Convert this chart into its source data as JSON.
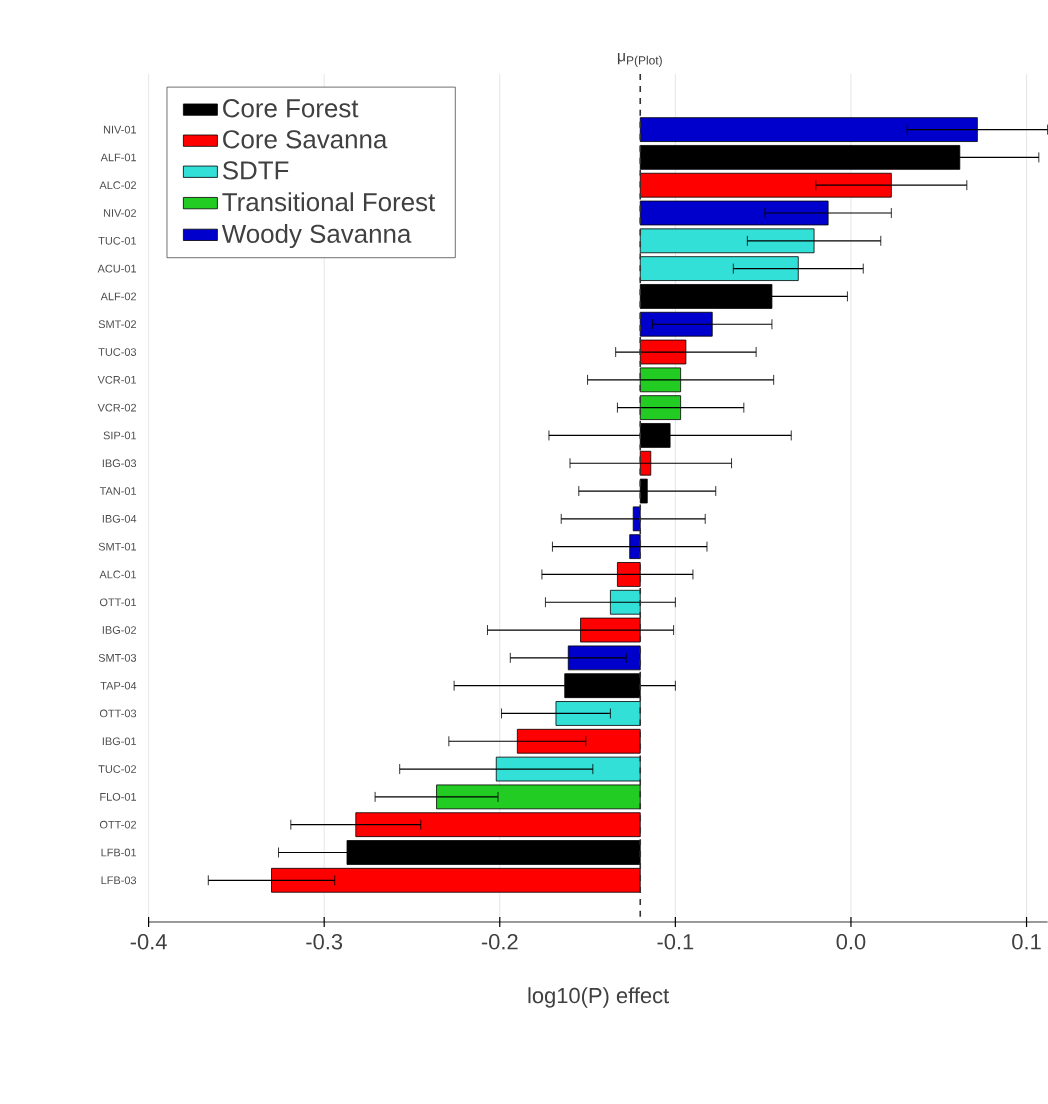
{
  "chart_data": {
    "type": "bar",
    "orientation": "horizontal",
    "xlabel": "log10(P) effect",
    "categories": [
      "NIV-01",
      "ALF-01",
      "ALC-02",
      "NIV-02",
      "TUC-01",
      "ACU-01",
      "ALF-02",
      "SMT-02",
      "TUC-03",
      "VCR-01",
      "VCR-02",
      "SIP-01",
      "IBG-03",
      "TAN-01",
      "IBG-04",
      "SMT-01",
      "ALC-01",
      "OTT-01",
      "IBG-02",
      "SMT-03",
      "TAP-04",
      "OTT-03",
      "IBG-01",
      "TUC-02",
      "FLO-01",
      "OTT-02",
      "LFB-01",
      "LFB-03"
    ],
    "series": [
      {
        "name": "Core Forest",
        "color": "#000000",
        "values": [
          null,
          0.182,
          null,
          null,
          null,
          null,
          0.075,
          null,
          null,
          null,
          null,
          0.017,
          null,
          0.004,
          null,
          null,
          null,
          null,
          null,
          null,
          -0.043,
          null,
          null,
          null,
          null,
          null,
          -0.167,
          null
        ],
        "base": [
          null,
          -0.12,
          null,
          null,
          null,
          null,
          -0.12,
          null,
          null,
          null,
          null,
          -0.12,
          null,
          -0.12,
          null,
          null,
          null,
          null,
          null,
          null,
          -0.12,
          null,
          null,
          null,
          null,
          null,
          -0.12,
          null
        ],
        "errors": [
          null,
          0.045,
          null,
          null,
          null,
          null,
          0.043,
          null,
          null,
          null,
          null,
          0.069,
          null,
          0.039,
          null,
          null,
          null,
          null,
          null,
          null,
          0.063,
          null,
          null,
          null,
          null,
          null,
          0.039,
          null
        ]
      },
      {
        "name": "Core Savanna",
        "color": "#ff0000",
        "values": [
          null,
          null,
          0.143,
          null,
          null,
          null,
          null,
          null,
          0.026,
          null,
          null,
          null,
          0.006,
          null,
          null,
          null,
          -0.013,
          null,
          -0.034,
          null,
          null,
          null,
          -0.07,
          null,
          null,
          -0.162,
          null,
          -0.21
        ],
        "base": [
          null,
          null,
          -0.12,
          null,
          null,
          null,
          null,
          null,
          -0.12,
          null,
          null,
          null,
          -0.12,
          null,
          null,
          null,
          -0.12,
          null,
          -0.12,
          null,
          null,
          null,
          -0.12,
          null,
          null,
          -0.12,
          null,
          -0.12
        ],
        "errors": [
          null,
          null,
          0.043,
          null,
          null,
          null,
          null,
          null,
          0.04,
          null,
          null,
          null,
          0.046,
          null,
          null,
          null,
          0.043,
          null,
          0.053,
          null,
          null,
          null,
          0.039,
          null,
          null,
          0.037,
          null,
          0.036
        ]
      },
      {
        "name": "SDTF",
        "color": "#33e0d8",
        "values": [
          null,
          null,
          null,
          null,
          0.099,
          0.09,
          null,
          null,
          null,
          null,
          null,
          null,
          null,
          null,
          null,
          null,
          null,
          -0.017,
          null,
          null,
          null,
          -0.048,
          null,
          -0.082,
          null,
          null,
          null,
          null
        ],
        "base": [
          null,
          null,
          null,
          null,
          -0.12,
          -0.12,
          null,
          null,
          null,
          null,
          null,
          null,
          null,
          null,
          null,
          null,
          null,
          -0.12,
          null,
          null,
          null,
          -0.12,
          null,
          -0.12,
          null,
          null,
          null,
          null
        ],
        "errors": [
          null,
          null,
          null,
          null,
          0.038,
          0.037,
          null,
          null,
          null,
          null,
          null,
          null,
          null,
          null,
          null,
          null,
          null,
          0.037,
          null,
          null,
          null,
          0.031,
          null,
          0.055,
          null,
          null,
          null,
          null
        ]
      },
      {
        "name": "Transitional Forest",
        "color": "#22cc22",
        "values": [
          null,
          null,
          null,
          null,
          null,
          null,
          null,
          null,
          null,
          0.023,
          0.023,
          null,
          null,
          null,
          null,
          null,
          null,
          null,
          null,
          null,
          null,
          null,
          null,
          null,
          -0.116,
          null,
          null,
          null
        ],
        "base": [
          null,
          null,
          null,
          null,
          null,
          null,
          null,
          null,
          null,
          -0.12,
          -0.12,
          null,
          null,
          null,
          null,
          null,
          null,
          null,
          null,
          null,
          null,
          null,
          null,
          null,
          -0.12,
          null,
          null,
          null
        ],
        "errors": [
          null,
          null,
          null,
          null,
          null,
          null,
          null,
          null,
          null,
          0.053,
          0.036,
          null,
          null,
          null,
          null,
          null,
          null,
          null,
          null,
          null,
          null,
          null,
          null,
          null,
          0.035,
          null,
          null,
          null
        ]
      },
      {
        "name": "Woody Savanna",
        "color": "#0000cc",
        "values": [
          0.192,
          null,
          null,
          0.107,
          null,
          null,
          null,
          0.041,
          null,
          null,
          null,
          null,
          null,
          null,
          -0.004,
          -0.006,
          null,
          null,
          null,
          -0.041,
          null,
          null,
          null,
          null,
          null,
          null,
          null,
          null
        ],
        "base": [
          -0.12,
          null,
          null,
          -0.12,
          null,
          null,
          null,
          -0.12,
          null,
          null,
          null,
          null,
          null,
          null,
          -0.12,
          -0.12,
          null,
          null,
          null,
          -0.12,
          null,
          null,
          null,
          null,
          null,
          null,
          null,
          null
        ],
        "errors": [
          0.04,
          null,
          null,
          0.036,
          null,
          null,
          null,
          0.034,
          null,
          null,
          null,
          null,
          null,
          null,
          0.041,
          0.044,
          null,
          null,
          null,
          0.033,
          null,
          null,
          null,
          null,
          null,
          null,
          null,
          null
        ]
      }
    ],
    "xlim": [
      -0.4,
      0.112
    ],
    "xticks": [
      -0.4,
      -0.3,
      -0.2,
      -0.1,
      {
        "value": 0,
        "label": "0.0"
      },
      0.1
    ],
    "grid": "x",
    "legend": "top left",
    "ref_lines": [
      {
        "axis": "x",
        "value": -0.12,
        "label": "μ$_{P(Plot)}$",
        "line_style": "dashed"
      }
    ]
  }
}
